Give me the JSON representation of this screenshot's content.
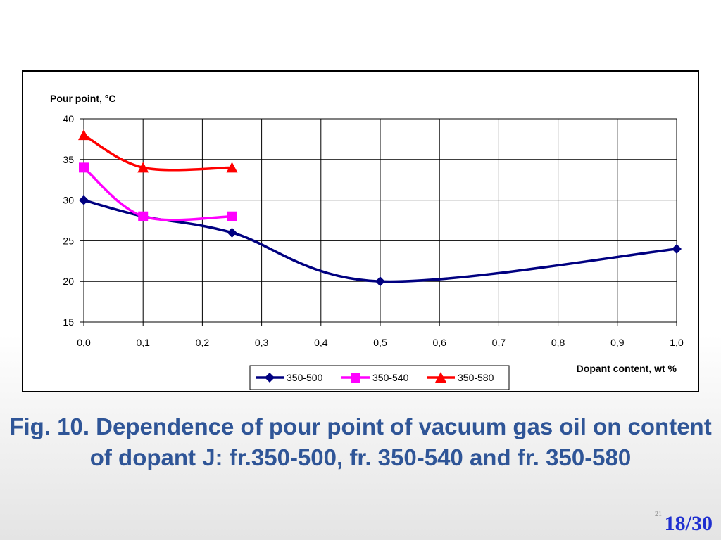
{
  "caption": "Fig. 10. Dependence of pour point of vacuum gas oil on content of dopant J: fr.350-500, fr. 350-540 and fr. 350-580",
  "page_number": "18/30",
  "page_small": "21",
  "chart_data": {
    "type": "line",
    "ylabel": "Pour point, °C",
    "xlabel": "Dopant content, wt %",
    "xlim": [
      0.0,
      1.0
    ],
    "ylim": [
      15,
      40
    ],
    "x_ticks": [
      "0,0",
      "0,1",
      "0,2",
      "0,3",
      "0,4",
      "0,5",
      "0,6",
      "0,7",
      "0,8",
      "0,9",
      "1,0"
    ],
    "y_ticks": [
      "15",
      "20",
      "25",
      "30",
      "35",
      "40"
    ],
    "grid": true,
    "legend_position": "bottom-center",
    "series": [
      {
        "name": "350-500",
        "color": "#000080",
        "marker": "diamond",
        "x": [
          0.0,
          0.1,
          0.25,
          0.5,
          1.0
        ],
        "y": [
          30,
          28,
          26,
          20,
          24
        ]
      },
      {
        "name": "350-540",
        "color": "#ff00ff",
        "marker": "square",
        "x": [
          0.0,
          0.1,
          0.25
        ],
        "y": [
          34,
          28,
          28
        ]
      },
      {
        "name": "350-580",
        "color": "#ff0000",
        "marker": "triangle",
        "x": [
          0.0,
          0.1,
          0.25
        ],
        "y": [
          38,
          34,
          34
        ]
      }
    ]
  }
}
